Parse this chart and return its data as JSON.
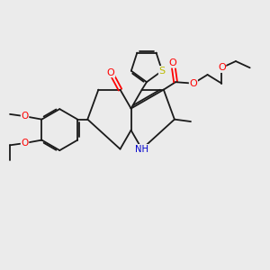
{
  "bg_color": "#ebebeb",
  "bond_color": "#1a1a1a",
  "bond_width": 1.3,
  "figsize": [
    3.0,
    3.0
  ],
  "dpi": 100,
  "atom_colors": {
    "O": "#ff0000",
    "N": "#0000cc",
    "S": "#bbbb00",
    "C": "#1a1a1a"
  },
  "scale": 1.0
}
